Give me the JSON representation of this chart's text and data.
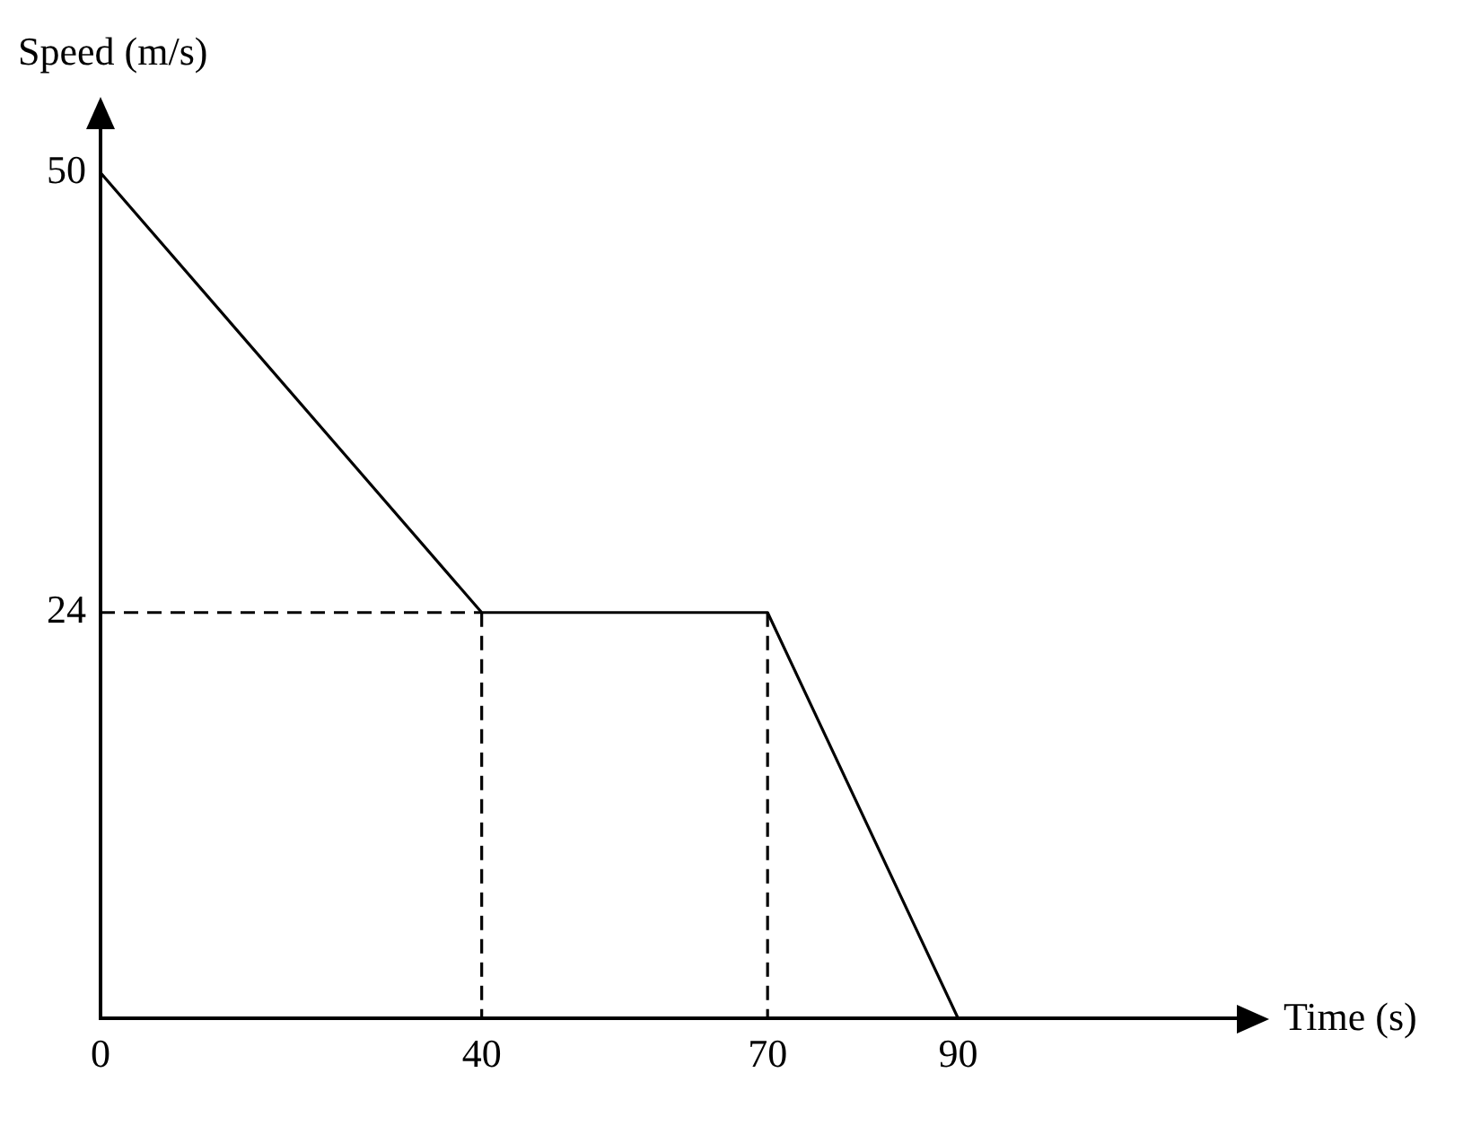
{
  "chart_data": {
    "type": "line",
    "xlabel": "Time (s)",
    "ylabel": "Speed (m/s)",
    "xlim": [
      0,
      120
    ],
    "ylim": [
      0,
      53
    ],
    "xticks": [
      0,
      40,
      70,
      90
    ],
    "yticks": [
      24,
      50
    ],
    "grid": false,
    "legend": false,
    "marker": "none",
    "series": [
      {
        "color": "#000000",
        "x": [
          0,
          40,
          70,
          90
        ],
        "values": [
          50,
          24,
          24,
          0
        ],
        "line_style": "solid"
      },
      {
        "color": "#000000",
        "x": [
          0,
          40
        ],
        "values": [
          24,
          24
        ],
        "line_style": "dashed"
      },
      {
        "color": "#000000",
        "x": [
          40,
          40
        ],
        "values": [
          24,
          0
        ],
        "line_style": "dashed"
      },
      {
        "color": "#000000",
        "x": [
          70,
          70
        ],
        "values": [
          24,
          0
        ],
        "line_style": "dashed"
      }
    ]
  }
}
